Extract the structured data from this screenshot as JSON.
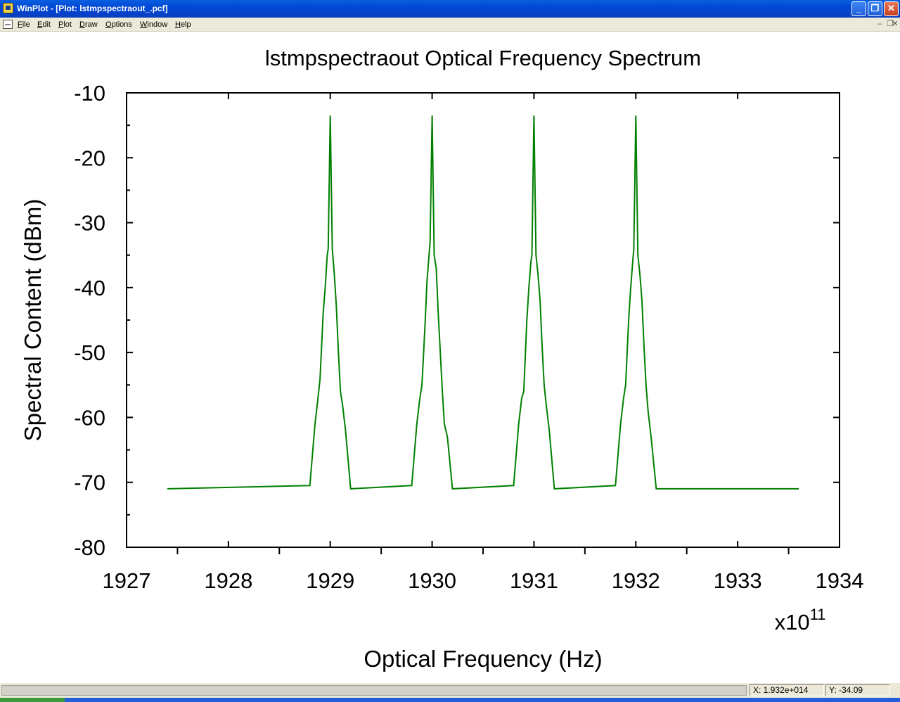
{
  "window": {
    "title": "WinPlot - [Plot: lstmpspectraout_.pcf]",
    "app_icon": "winplot-app-icon",
    "controls": {
      "minimize": "_",
      "maximize": "❐",
      "close": "✕"
    }
  },
  "menu": {
    "items": [
      "File",
      "Edit",
      "Plot",
      "Draw",
      "Options",
      "Window",
      "Help"
    ],
    "mdi_controls": {
      "minimize": "–",
      "restore": "❐",
      "close": "✕"
    }
  },
  "colors": {
    "trace": "#008000",
    "axes": "#000000",
    "background": "#ffffff"
  },
  "chart_data": {
    "type": "line",
    "title": "lstmpspectraout  Optical Frequency Spectrum",
    "xlabel": "Optical Frequency (Hz)",
    "ylabel": "Spectral Content (dBm)",
    "x_multiplier_label": "x10",
    "x_multiplier_exponent": "11",
    "xlim": [
      1927,
      1934
    ],
    "ylim": [
      -80,
      -10
    ],
    "x_ticks": [
      "1927",
      "1928",
      "1929",
      "1930",
      "1931",
      "1932",
      "1933",
      "1934"
    ],
    "y_ticks": [
      "-10",
      "-20",
      "-30",
      "-40",
      "-50",
      "-60",
      "-70",
      "-80"
    ],
    "grid": false,
    "noise_floor": -71,
    "x_range_data": [
      1927.4,
      1933.6
    ],
    "series": [
      {
        "x": [
          1927.4,
          1928.8,
          1928.85,
          1928.88,
          1928.9,
          1928.93,
          1928.95,
          1928.97,
          1928.98,
          1929.0,
          1929.02,
          1929.04,
          1929.06,
          1929.08,
          1929.1,
          1929.12,
          1929.15,
          1929.2,
          1929.8,
          1929.85,
          1929.88,
          1929.9,
          1929.93,
          1929.95,
          1929.97,
          1929.98,
          1930.0,
          1930.02,
          1930.04,
          1930.06,
          1930.08,
          1930.1,
          1930.12,
          1930.15,
          1930.2,
          1930.8,
          1930.85,
          1930.88,
          1930.9,
          1930.93,
          1930.95,
          1930.97,
          1930.98,
          1931.0,
          1931.02,
          1931.04,
          1931.06,
          1931.08,
          1931.1,
          1931.12,
          1931.15,
          1931.2,
          1931.8,
          1931.85,
          1931.88,
          1931.9,
          1931.93,
          1931.95,
          1931.97,
          1931.98,
          1932.0,
          1932.02,
          1932.04,
          1932.06,
          1932.08,
          1932.1,
          1932.12,
          1932.15,
          1932.2,
          1933.6
        ],
        "y": [
          -71,
          -70.5,
          -61,
          -57,
          -54,
          -44,
          -40,
          -35,
          -34,
          -13.5,
          -34,
          -38,
          -43,
          -50,
          -56,
          -58,
          -62,
          -71,
          -70.5,
          -61,
          -57,
          -55,
          -46,
          -39,
          -35,
          -33,
          -13.5,
          -35,
          -37,
          -44,
          -50,
          -56,
          -61,
          -63,
          -71,
          -70.5,
          -61,
          -57,
          -56,
          -45,
          -40,
          -36,
          -35,
          -13.5,
          -35,
          -38,
          -42,
          -49,
          -55,
          -58,
          -62,
          -71,
          -70.5,
          -61,
          -57,
          -55,
          -45,
          -40,
          -36,
          -34,
          -13.5,
          -35,
          -38,
          -42,
          -49,
          -55,
          -59,
          -63,
          -71,
          -71
        ]
      }
    ]
  },
  "status": {
    "x_readout": "X: 1.932e+014",
    "y_readout": "Y: -34.09"
  }
}
